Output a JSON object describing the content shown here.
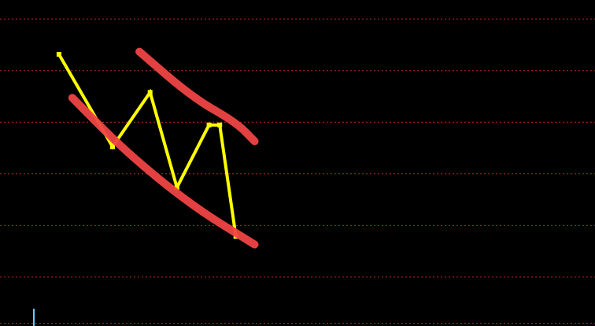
{
  "colors": {
    "background": "#000000",
    "grid": "#c0281e",
    "price_line": "#ffff00",
    "channel_lines": "#ef4444",
    "cursor": "#5ad1ff"
  },
  "chart_data": {
    "type": "line",
    "grid": true,
    "grid_style": "dotted",
    "series": [
      {
        "values": [
          [
            0.0,
            9.0
          ],
          [
            2.0,
            5.6
          ],
          [
            3.4,
            7.6
          ],
          [
            4.4,
            4.1
          ],
          [
            5.6,
            6.4
          ],
          [
            6.0,
            6.4
          ],
          [
            6.6,
            2.3
          ]
        ]
      }
    ],
    "channel_lines": [
      {
        "points": [
          [
            3.0,
            9.1
          ],
          [
            5.0,
            7.4
          ],
          [
            6.6,
            6.5
          ],
          [
            7.3,
            5.8
          ]
        ]
      },
      {
        "points": [
          [
            0.5,
            7.4
          ],
          [
            2.5,
            5.4
          ],
          [
            5.0,
            3.4
          ],
          [
            7.3,
            2.0
          ]
        ]
      }
    ],
    "xlim": [
      -2.2,
      20.0
    ],
    "ylim": [
      -1.0,
      11.0
    ],
    "grid_levels": [
      10.3,
      8.4,
      6.5,
      4.6,
      2.7,
      0.8,
      -0.9
    ]
  }
}
